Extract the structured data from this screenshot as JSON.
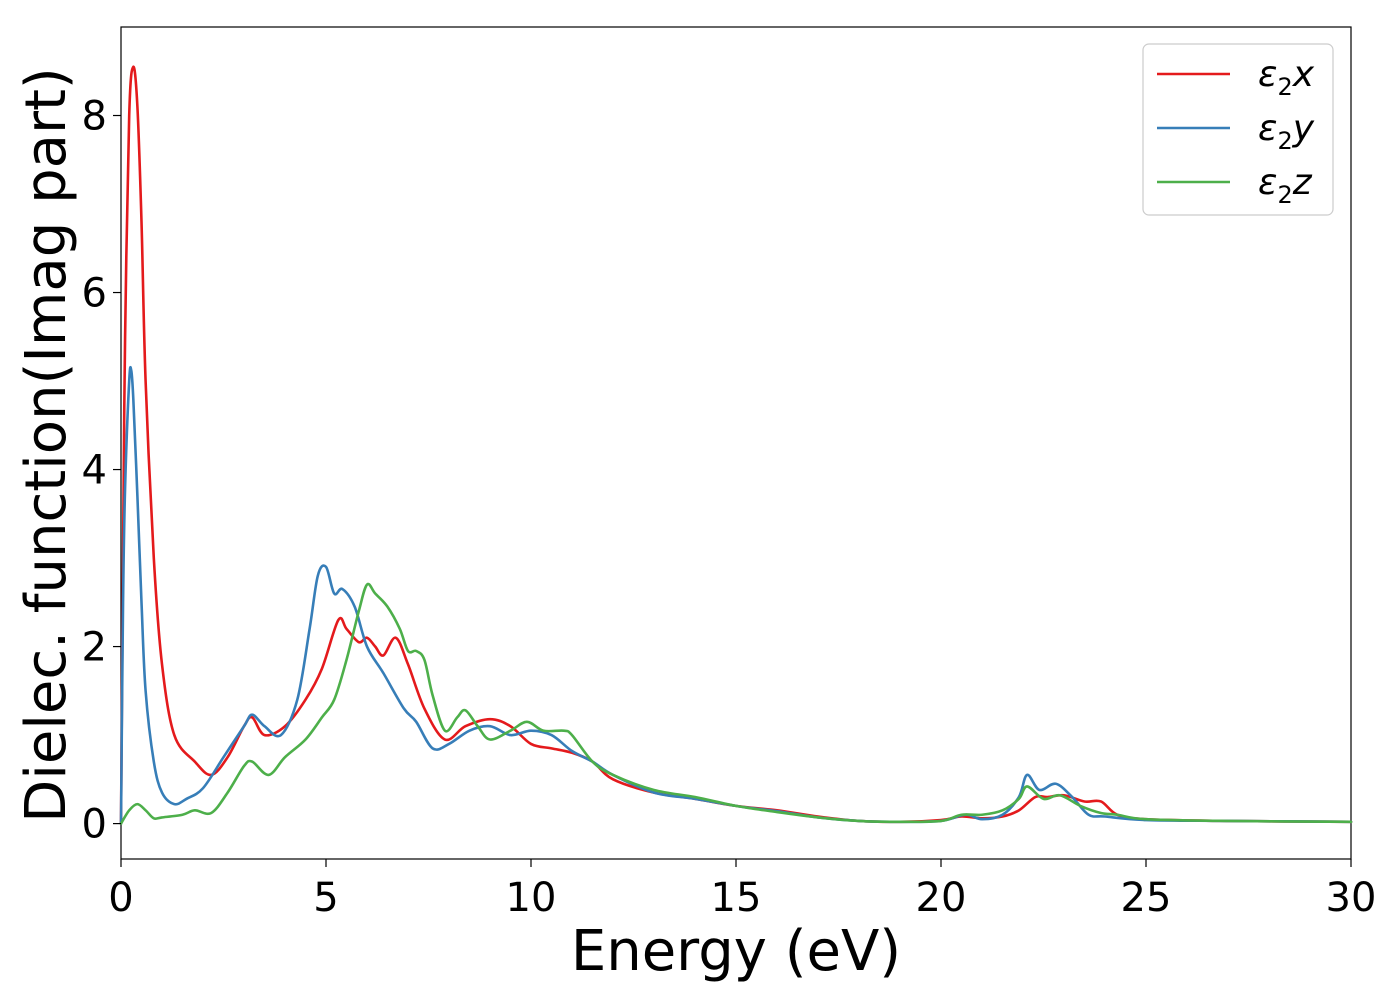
{
  "chart_data": {
    "type": "line",
    "xlabel": "Energy (eV)",
    "ylabel": "Dielec. function(Imag part)",
    "xlim": [
      0,
      30
    ],
    "ylim": [
      -0.4,
      9.0
    ],
    "xticks": [
      0,
      5,
      10,
      15,
      20,
      25,
      30
    ],
    "xtick_labels": [
      "0",
      "5",
      "10",
      "15",
      "20",
      "25",
      "30"
    ],
    "yticks": [
      0,
      2,
      4,
      6,
      8
    ],
    "ytick_labels": [
      "0",
      "2",
      "4",
      "6",
      "8"
    ],
    "grid": false,
    "legend_position": "top-right",
    "series": [
      {
        "name": "ε2x",
        "legend": {
          "base": "ε",
          "sub": "2",
          "tail": "x"
        },
        "color": "#e41a1c",
        "x": [
          0,
          0.05,
          0.1,
          0.2,
          0.3,
          0.4,
          0.5,
          0.6,
          0.8,
          1.0,
          1.3,
          1.8,
          2.2,
          2.6,
          3.0,
          3.2,
          3.5,
          4.0,
          4.5,
          4.9,
          5.3,
          5.5,
          5.8,
          6.0,
          6.2,
          6.4,
          6.7,
          7.0,
          7.4,
          7.9,
          8.4,
          9.0,
          9.5,
          10.0,
          10.5,
          11.0,
          11.5,
          12.0,
          13.0,
          14.0,
          15.0,
          16.0,
          17.0,
          18.0,
          19.0,
          20.0,
          20.5,
          21.0,
          21.5,
          21.9,
          22.3,
          22.6,
          23.0,
          23.5,
          23.9,
          24.3,
          25.0,
          27.0,
          30.0
        ],
        "y": [
          0.0,
          3.0,
          5.5,
          8.0,
          8.55,
          8.1,
          6.8,
          5.0,
          3.0,
          1.8,
          1.0,
          0.7,
          0.55,
          0.75,
          1.1,
          1.2,
          1.0,
          1.1,
          1.4,
          1.75,
          2.3,
          2.2,
          2.05,
          2.1,
          2.0,
          1.9,
          2.1,
          1.8,
          1.3,
          0.95,
          1.1,
          1.18,
          1.1,
          0.9,
          0.85,
          0.8,
          0.7,
          0.5,
          0.35,
          0.28,
          0.2,
          0.15,
          0.08,
          0.03,
          0.02,
          0.04,
          0.08,
          0.06,
          0.08,
          0.15,
          0.3,
          0.3,
          0.32,
          0.25,
          0.25,
          0.1,
          0.05,
          0.03,
          0.02
        ]
      },
      {
        "name": "ε2y",
        "legend": {
          "base": "ε",
          "sub": "2",
          "tail": "y"
        },
        "color": "#377eb8",
        "x": [
          0,
          0.05,
          0.1,
          0.2,
          0.25,
          0.3,
          0.4,
          0.5,
          0.6,
          0.8,
          1.0,
          1.3,
          1.6,
          2.0,
          2.5,
          3.0,
          3.2,
          3.5,
          3.9,
          4.3,
          4.6,
          4.8,
          5.0,
          5.2,
          5.4,
          5.7,
          6.0,
          6.4,
          6.9,
          7.2,
          7.6,
          8.0,
          8.5,
          9.0,
          9.5,
          10.0,
          10.5,
          11.0,
          11.5,
          12.0,
          13.0,
          14.0,
          15.0,
          15.3,
          16.0,
          17.0,
          18.0,
          19.0,
          20.0,
          20.6,
          21.0,
          21.5,
          21.9,
          22.1,
          22.4,
          22.8,
          23.2,
          23.6,
          24.0,
          25.0,
          27.0,
          30.0
        ],
        "y": [
          0.0,
          2.5,
          3.8,
          5.0,
          5.12,
          4.8,
          3.7,
          2.5,
          1.5,
          0.7,
          0.35,
          0.22,
          0.28,
          0.4,
          0.75,
          1.1,
          1.23,
          1.1,
          1.0,
          1.4,
          2.2,
          2.8,
          2.9,
          2.6,
          2.65,
          2.45,
          2.0,
          1.7,
          1.3,
          1.15,
          0.85,
          0.9,
          1.05,
          1.1,
          1.0,
          1.05,
          1.0,
          0.82,
          0.7,
          0.55,
          0.35,
          0.28,
          0.2,
          0.18,
          0.14,
          0.07,
          0.03,
          0.02,
          0.03,
          0.1,
          0.05,
          0.1,
          0.3,
          0.55,
          0.38,
          0.45,
          0.3,
          0.1,
          0.08,
          0.04,
          0.03,
          0.02
        ]
      },
      {
        "name": "ε2z",
        "legend": {
          "base": "ε",
          "sub": "2",
          "tail": "z"
        },
        "color": "#4daf4a",
        "x": [
          0,
          0.2,
          0.4,
          0.6,
          0.8,
          1.0,
          1.5,
          1.8,
          2.2,
          2.6,
          3.0,
          3.2,
          3.6,
          4.0,
          4.5,
          4.9,
          5.2,
          5.5,
          5.8,
          6.0,
          6.2,
          6.5,
          6.8,
          7.0,
          7.2,
          7.4,
          7.6,
          7.9,
          8.2,
          8.4,
          8.7,
          9.0,
          9.5,
          9.9,
          10.3,
          10.8,
          11.0,
          11.5,
          12.0,
          13.0,
          14.0,
          15.0,
          16.0,
          17.0,
          18.0,
          19.0,
          20.0,
          20.5,
          21.0,
          21.5,
          21.9,
          22.1,
          22.5,
          22.9,
          23.4,
          23.9,
          24.3,
          25.0,
          27.0,
          30.0
        ],
        "y": [
          0.0,
          0.15,
          0.22,
          0.15,
          0.06,
          0.07,
          0.1,
          0.15,
          0.12,
          0.35,
          0.65,
          0.7,
          0.55,
          0.75,
          0.95,
          1.2,
          1.4,
          1.85,
          2.4,
          2.7,
          2.6,
          2.45,
          2.2,
          1.95,
          1.95,
          1.85,
          1.45,
          1.05,
          1.2,
          1.28,
          1.1,
          0.95,
          1.05,
          1.15,
          1.05,
          1.05,
          1.0,
          0.7,
          0.55,
          0.38,
          0.3,
          0.2,
          0.13,
          0.07,
          0.03,
          0.02,
          0.03,
          0.1,
          0.1,
          0.15,
          0.28,
          0.42,
          0.28,
          0.32,
          0.2,
          0.12,
          0.1,
          0.05,
          0.03,
          0.02
        ]
      }
    ]
  }
}
